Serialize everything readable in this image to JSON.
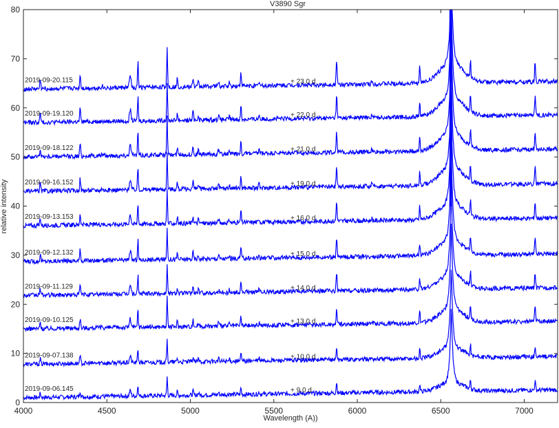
{
  "chart_data": {
    "type": "line",
    "title": "V3890 Sgr",
    "xlabel": "Wavelength (A))",
    "ylabel": "relative intensity",
    "xlim": [
      4000,
      7200
    ],
    "ylim": [
      0,
      80
    ],
    "xticks": [
      4000,
      4500,
      5000,
      5500,
      6000,
      6500,
      7000
    ],
    "yticks": [
      0,
      10,
      20,
      30,
      40,
      50,
      60,
      70,
      80
    ],
    "grid": false,
    "line_color": "#0000ff",
    "lines": [
      {
        "x": 6460,
        "y": 80
      },
      {
        "x": 6600,
        "y": 80
      }
    ],
    "series": [
      {
        "name": "2019-09-06.145",
        "phase": "+ 9.0 d",
        "baseline": 1.0,
        "scale": 0.55
      },
      {
        "name": "2019-09-07.138",
        "phase": "+ 10.0 d",
        "baseline": 7.8,
        "scale": 0.65
      },
      {
        "name": "2019-09-10.125",
        "phase": "+ 13.0 d",
        "baseline": 15.0,
        "scale": 0.85
      },
      {
        "name": "2019-09-11.129",
        "phase": "+ 14.0 d",
        "baseline": 21.8,
        "scale": 0.9
      },
      {
        "name": "2019-09-12.132",
        "phase": "+ 15.0 d",
        "baseline": 28.7,
        "scale": 0.95
      },
      {
        "name": "2019-09-13.153",
        "phase": "+ 16.0 d",
        "baseline": 36.0,
        "scale": 1.0
      },
      {
        "name": "2019-09-16.152",
        "phase": "+ 19.0 d",
        "baseline": 43.0,
        "scale": 1.05
      },
      {
        "name": "2019-09-18.122",
        "phase": "+ 21.0 d",
        "baseline": 50.0,
        "scale": 1.1
      },
      {
        "name": "2019-09-19.120",
        "phase": "+ 22.0 d",
        "baseline": 57.0,
        "scale": 1.15
      },
      {
        "name": "2019-09-20.115",
        "phase": "+ 23.0 d",
        "baseline": 63.8,
        "scale": 1.2
      }
    ],
    "emission_lines_A": [
      4101,
      4340,
      4471,
      4640,
      4686,
      4861,
      4922,
      5016,
      5048,
      5169,
      5234,
      5303,
      5412,
      5876,
      6087,
      6374,
      6563,
      6678,
      7065
    ]
  }
}
